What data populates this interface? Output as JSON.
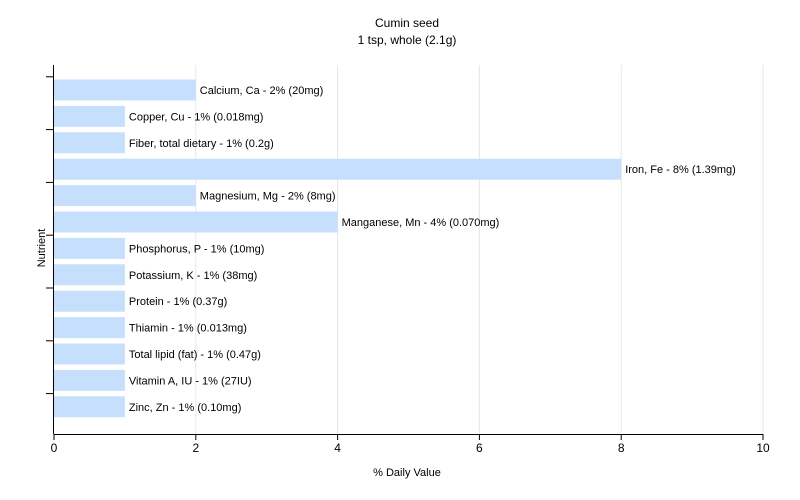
{
  "chart_data": {
    "type": "bar",
    "orientation": "horizontal",
    "title": "Cumin seed",
    "subtitle": "1 tsp, whole (2.1g)",
    "xlabel": "% Daily Value",
    "ylabel": "Nutrient",
    "xlim": [
      0,
      10
    ],
    "xticks": [
      0,
      2,
      4,
      6,
      8,
      10
    ],
    "grid": true,
    "bar_color": "#c6dffd",
    "categories": [
      "Calcium, Ca",
      "Copper, Cu",
      "Fiber, total dietary",
      "Iron, Fe",
      "Magnesium, Mg",
      "Manganese, Mn",
      "Phosphorus, P",
      "Potassium, K",
      "Protein",
      "Thiamin",
      "Total lipid (fat)",
      "Vitamin A, IU",
      "Zinc, Zn"
    ],
    "values": [
      2,
      1,
      1,
      8,
      2,
      4,
      1,
      1,
      1,
      1,
      1,
      1,
      1
    ],
    "labels": [
      "Calcium, Ca - 2% (20mg)",
      "Copper, Cu - 1% (0.018mg)",
      "Fiber, total dietary - 1% (0.2g)",
      "Iron, Fe - 8% (1.39mg)",
      "Magnesium, Mg - 2% (8mg)",
      "Manganese, Mn - 4% (0.070mg)",
      "Phosphorus, P - 1% (10mg)",
      "Potassium, K - 1% (38mg)",
      "Protein - 1% (0.37g)",
      "Thiamin - 1% (0.013mg)",
      "Total lipid (fat) - 1% (0.47g)",
      "Vitamin A, IU - 1% (27IU)",
      "Zinc, Zn - 1% (0.10mg)"
    ]
  }
}
